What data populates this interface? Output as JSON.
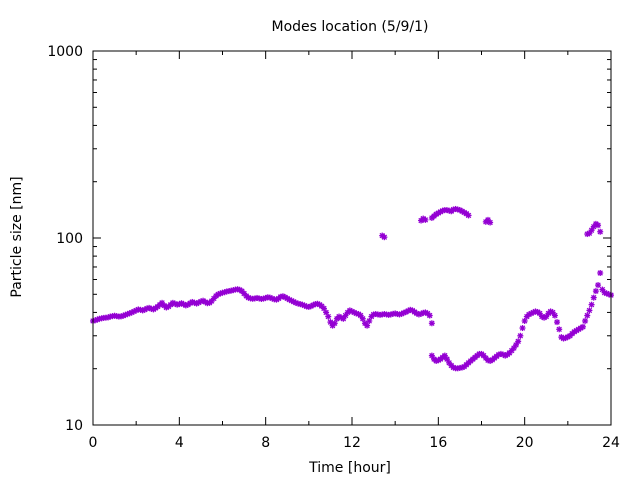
{
  "chart_data": {
    "type": "scatter",
    "title": "Modes location (5/9/1)",
    "xlabel": "Time [hour]",
    "ylabel": "Particle size [nm]",
    "xlim": [
      0,
      24
    ],
    "ylim": [
      10,
      1000
    ],
    "yscale": "log",
    "grid": false,
    "legend": "none",
    "x_ticks": [
      0,
      4,
      8,
      12,
      16,
      20,
      24
    ],
    "y_ticks": [
      10,
      100,
      1000
    ],
    "marker_color": "#9400d3",
    "series": [
      {
        "points": [
          [
            0.0,
            36
          ],
          [
            0.1,
            36.3
          ],
          [
            0.2,
            36.6
          ],
          [
            0.3,
            37
          ],
          [
            0.4,
            37.2
          ],
          [
            0.5,
            37.4
          ],
          [
            0.6,
            37.5
          ],
          [
            0.7,
            37.6
          ],
          [
            0.8,
            38
          ],
          [
            0.9,
            38.2
          ],
          [
            1.0,
            38.4
          ],
          [
            1.1,
            38.2
          ],
          [
            1.2,
            38
          ],
          [
            1.3,
            38.1
          ],
          [
            1.4,
            38.4
          ],
          [
            1.5,
            38.8
          ],
          [
            1.6,
            39.2
          ],
          [
            1.7,
            39.6
          ],
          [
            1.8,
            40
          ],
          [
            1.9,
            40.5
          ],
          [
            2.0,
            41
          ],
          [
            2.1,
            41.5
          ],
          [
            2.2,
            41.3
          ],
          [
            2.3,
            41
          ],
          [
            2.4,
            41.4
          ],
          [
            2.5,
            42
          ],
          [
            2.6,
            42.3
          ],
          [
            2.7,
            41.8
          ],
          [
            2.8,
            41.5
          ],
          [
            2.9,
            42.2
          ],
          [
            3.0,
            43
          ],
          [
            3.1,
            44
          ],
          [
            3.2,
            45
          ],
          [
            3.3,
            43.5
          ],
          [
            3.4,
            42.5
          ],
          [
            3.5,
            43
          ],
          [
            3.6,
            44
          ],
          [
            3.7,
            45
          ],
          [
            3.8,
            44.5
          ],
          [
            3.9,
            44
          ],
          [
            4.0,
            44.3
          ],
          [
            4.1,
            44.8
          ],
          [
            4.2,
            44.2
          ],
          [
            4.3,
            43.6
          ],
          [
            4.4,
            44
          ],
          [
            4.5,
            44.8
          ],
          [
            4.6,
            45.5
          ],
          [
            4.7,
            45
          ],
          [
            4.8,
            44.6
          ],
          [
            4.9,
            45.2
          ],
          [
            5.0,
            45.8
          ],
          [
            5.1,
            46.2
          ],
          [
            5.2,
            45.5
          ],
          [
            5.3,
            44.8
          ],
          [
            5.4,
            45
          ],
          [
            5.5,
            46
          ],
          [
            5.6,
            47.5
          ],
          [
            5.7,
            49
          ],
          [
            5.8,
            50
          ],
          [
            5.9,
            50.5
          ],
          [
            6.0,
            51
          ],
          [
            6.1,
            51.3
          ],
          [
            6.2,
            51.8
          ],
          [
            6.3,
            52
          ],
          [
            6.4,
            52.3
          ],
          [
            6.5,
            52.6
          ],
          [
            6.6,
            53
          ],
          [
            6.7,
            53.2
          ],
          [
            6.8,
            52.8
          ],
          [
            6.9,
            52
          ],
          [
            7.0,
            50.5
          ],
          [
            7.1,
            49
          ],
          [
            7.2,
            48
          ],
          [
            7.3,
            47.5
          ],
          [
            7.4,
            47.3
          ],
          [
            7.5,
            47.5
          ],
          [
            7.6,
            47.8
          ],
          [
            7.7,
            47.5
          ],
          [
            7.8,
            47.2
          ],
          [
            7.9,
            47.4
          ],
          [
            8.0,
            47.8
          ],
          [
            8.1,
            48.2
          ],
          [
            8.2,
            48
          ],
          [
            8.3,
            47.5
          ],
          [
            8.4,
            47
          ],
          [
            8.5,
            46.8
          ],
          [
            8.6,
            47.5
          ],
          [
            8.7,
            48.5
          ],
          [
            8.8,
            48.8
          ],
          [
            8.9,
            48.2
          ],
          [
            9.0,
            47.5
          ],
          [
            9.1,
            46.8
          ],
          [
            9.2,
            46.2
          ],
          [
            9.3,
            45.6
          ],
          [
            9.4,
            45
          ],
          [
            9.5,
            44.6
          ],
          [
            9.6,
            44.3
          ],
          [
            9.7,
            44
          ],
          [
            9.8,
            43.5
          ],
          [
            9.9,
            43
          ],
          [
            10.0,
            42.8
          ],
          [
            10.1,
            43.2
          ],
          [
            10.2,
            43.8
          ],
          [
            10.3,
            44.3
          ],
          [
            10.4,
            44.5
          ],
          [
            10.5,
            44
          ],
          [
            10.6,
            43.2
          ],
          [
            10.7,
            42
          ],
          [
            10.8,
            40
          ],
          [
            10.9,
            38
          ],
          [
            11.0,
            35.5
          ],
          [
            11.1,
            34
          ],
          [
            11.2,
            35
          ],
          [
            11.3,
            37
          ],
          [
            11.4,
            38
          ],
          [
            11.5,
            37.5
          ],
          [
            11.6,
            37
          ],
          [
            11.7,
            38.5
          ],
          [
            11.8,
            40
          ],
          [
            11.9,
            41
          ],
          [
            12.0,
            40.5
          ],
          [
            12.1,
            40
          ],
          [
            12.2,
            39.5
          ],
          [
            12.3,
            39.2
          ],
          [
            12.4,
            38.5
          ],
          [
            12.5,
            37
          ],
          [
            12.6,
            35
          ],
          [
            12.7,
            34
          ],
          [
            12.8,
            36
          ],
          [
            12.9,
            38
          ],
          [
            13.0,
            39
          ],
          [
            13.1,
            39.2
          ],
          [
            13.2,
            39
          ],
          [
            13.3,
            38.8
          ],
          [
            13.4,
            39
          ],
          [
            13.5,
            39.2
          ],
          [
            13.6,
            39
          ],
          [
            13.7,
            38.8
          ],
          [
            13.8,
            39
          ],
          [
            13.9,
            39.3
          ],
          [
            14.0,
            39.5
          ],
          [
            14.1,
            39.2
          ],
          [
            14.2,
            39
          ],
          [
            14.3,
            39.3
          ],
          [
            14.4,
            39.8
          ],
          [
            14.5,
            40.2
          ],
          [
            14.6,
            40.8
          ],
          [
            14.7,
            41.3
          ],
          [
            14.8,
            41
          ],
          [
            14.9,
            40.2
          ],
          [
            15.0,
            39.5
          ],
          [
            15.1,
            39
          ],
          [
            15.2,
            39.3
          ],
          [
            15.3,
            39.8
          ],
          [
            15.4,
            40
          ],
          [
            15.5,
            39.5
          ],
          [
            15.6,
            38.5
          ],
          [
            15.7,
            35
          ],
          [
            15.7,
            23.5
          ],
          [
            15.8,
            22.5
          ],
          [
            15.9,
            22
          ],
          [
            16.0,
            22.2
          ],
          [
            16.1,
            22.5
          ],
          [
            16.2,
            23
          ],
          [
            16.3,
            23.5
          ],
          [
            16.4,
            22.5
          ],
          [
            16.5,
            21.5
          ],
          [
            16.6,
            20.8
          ],
          [
            16.7,
            20.3
          ],
          [
            16.8,
            20.1
          ],
          [
            16.9,
            20.1
          ],
          [
            17.0,
            20.2
          ],
          [
            17.1,
            20.3
          ],
          [
            17.2,
            20.5
          ],
          [
            17.3,
            21
          ],
          [
            17.4,
            21.5
          ],
          [
            17.5,
            22
          ],
          [
            17.6,
            22.5
          ],
          [
            17.7,
            23
          ],
          [
            17.8,
            23.5
          ],
          [
            17.9,
            24
          ],
          [
            18.0,
            24
          ],
          [
            18.1,
            23.5
          ],
          [
            18.2,
            22.8
          ],
          [
            18.3,
            22.2
          ],
          [
            18.4,
            22
          ],
          [
            18.5,
            22.3
          ],
          [
            18.6,
            22.8
          ],
          [
            18.7,
            23.3
          ],
          [
            18.8,
            23.8
          ],
          [
            18.9,
            24
          ],
          [
            19.0,
            23.8
          ],
          [
            19.1,
            23.5
          ],
          [
            19.2,
            23.8
          ],
          [
            19.3,
            24.3
          ],
          [
            19.4,
            25
          ],
          [
            19.5,
            25.8
          ],
          [
            19.6,
            26.8
          ],
          [
            19.7,
            28
          ],
          [
            19.8,
            30
          ],
          [
            19.9,
            33
          ],
          [
            20.0,
            36
          ],
          [
            20.1,
            38
          ],
          [
            20.2,
            39
          ],
          [
            20.3,
            39.5
          ],
          [
            20.4,
            40
          ],
          [
            20.5,
            40.5
          ],
          [
            20.6,
            40.2
          ],
          [
            20.7,
            39.5
          ],
          [
            20.8,
            38
          ],
          [
            20.9,
            37.5
          ],
          [
            21.0,
            38
          ],
          [
            21.1,
            39.5
          ],
          [
            21.2,
            40.5
          ],
          [
            21.3,
            40
          ],
          [
            21.4,
            38.5
          ],
          [
            21.5,
            35.5
          ],
          [
            21.6,
            32.5
          ],
          [
            21.7,
            29.5
          ],
          [
            21.8,
            29
          ],
          [
            21.9,
            29.2
          ],
          [
            22.0,
            29.6
          ],
          [
            22.1,
            30
          ],
          [
            22.2,
            30.8
          ],
          [
            22.3,
            31.5
          ],
          [
            22.4,
            32
          ],
          [
            22.5,
            32.5
          ],
          [
            22.6,
            33
          ],
          [
            22.7,
            33.5
          ],
          [
            22.8,
            36
          ],
          [
            22.9,
            38.5
          ],
          [
            23.0,
            41
          ],
          [
            23.1,
            44
          ],
          [
            23.2,
            48
          ],
          [
            23.3,
            52
          ],
          [
            23.4,
            56
          ],
          [
            23.5,
            65
          ],
          [
            23.6,
            53
          ],
          [
            23.7,
            51
          ],
          [
            23.8,
            50.5
          ],
          [
            23.9,
            50
          ],
          [
            24.0,
            49.5
          ],
          [
            13.4,
            103
          ],
          [
            13.5,
            101
          ],
          [
            15.2,
            124
          ],
          [
            15.3,
            127
          ],
          [
            15.4,
            125
          ],
          [
            15.7,
            128
          ],
          [
            15.8,
            131
          ],
          [
            15.9,
            134
          ],
          [
            16.0,
            136
          ],
          [
            16.1,
            138
          ],
          [
            16.2,
            140
          ],
          [
            16.3,
            141
          ],
          [
            16.4,
            141
          ],
          [
            16.5,
            140
          ],
          [
            16.6,
            139
          ],
          [
            16.7,
            142
          ],
          [
            16.8,
            143
          ],
          [
            16.9,
            142
          ],
          [
            17.0,
            141
          ],
          [
            17.1,
            139
          ],
          [
            17.2,
            137
          ],
          [
            17.3,
            135
          ],
          [
            17.4,
            132
          ],
          [
            18.2,
            122
          ],
          [
            18.3,
            125
          ],
          [
            18.4,
            121
          ],
          [
            22.9,
            105
          ],
          [
            23.0,
            106
          ],
          [
            23.1,
            110
          ],
          [
            23.2,
            115
          ],
          [
            23.3,
            119
          ],
          [
            23.4,
            117
          ],
          [
            23.5,
            108
          ]
        ]
      }
    ]
  }
}
